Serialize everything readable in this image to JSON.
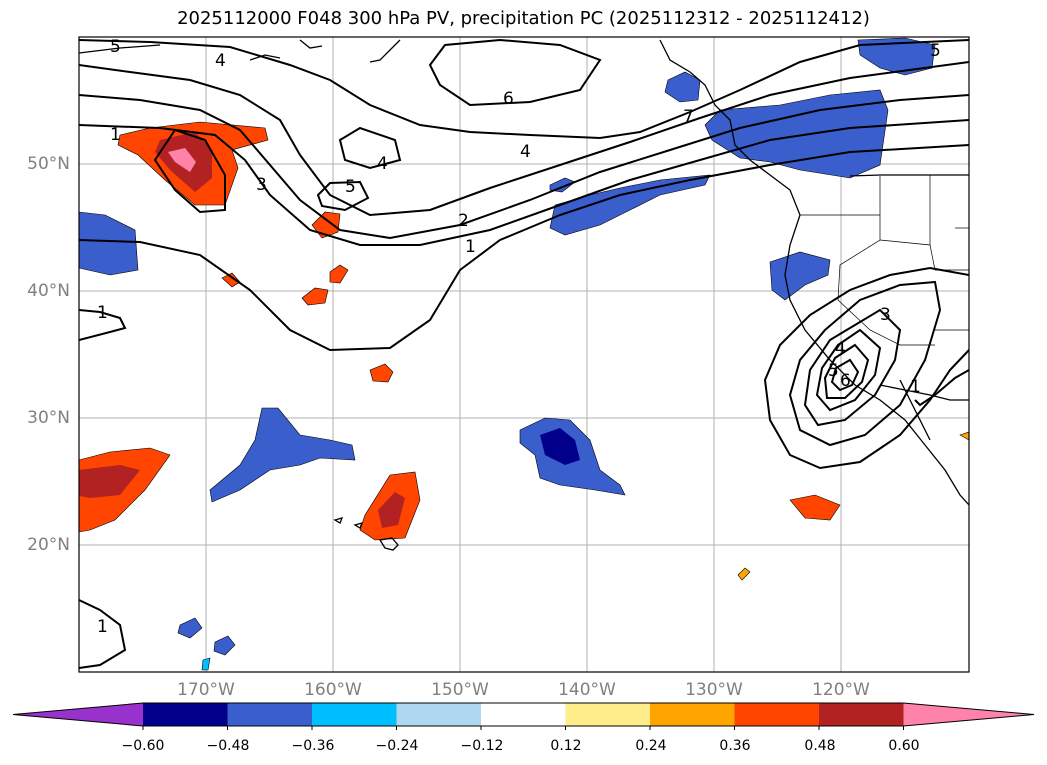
{
  "title": "2025112000 F048 300 hPa PV, precipitation PC (2025112312 - 2025112412)",
  "map": {
    "lat_ticks": [
      {
        "value": 20,
        "label": "20°N"
      },
      {
        "value": 30,
        "label": "30°N"
      },
      {
        "value": 40,
        "label": "40°N"
      },
      {
        "value": 50,
        "label": "50°N"
      }
    ],
    "lon_ticks": [
      {
        "value": -170,
        "label": "170°W"
      },
      {
        "value": -160,
        "label": "160°W"
      },
      {
        "value": -150,
        "label": "150°W"
      },
      {
        "value": -140,
        "label": "140°W"
      },
      {
        "value": -130,
        "label": "130°W"
      },
      {
        "value": -120,
        "label": "120°W"
      }
    ],
    "extent": {
      "lon_min": -180,
      "lon_max": -110,
      "lat_min": 10,
      "lat_max": 60
    },
    "pv_contour_labels": [
      "5",
      "4",
      "1",
      "3",
      "5",
      "4",
      "6",
      "4",
      "2",
      "1",
      "1",
      "7",
      "5",
      "3",
      "4",
      "5",
      "6",
      "1",
      "1"
    ]
  },
  "colorbar": {
    "labels": [
      "−0.60",
      "−0.48",
      "−0.36",
      "−0.24",
      "−0.12",
      "0.12",
      "0.24",
      "0.36",
      "0.48",
      "0.60"
    ],
    "colors": [
      "#9932cc",
      "#00008b",
      "#3a5fcd",
      "#00bfff",
      "#add8f0",
      "#ffffff",
      "#ffec8b",
      "#ffa500",
      "#ff4500",
      "#b22222",
      "#ff82ab"
    ]
  }
}
